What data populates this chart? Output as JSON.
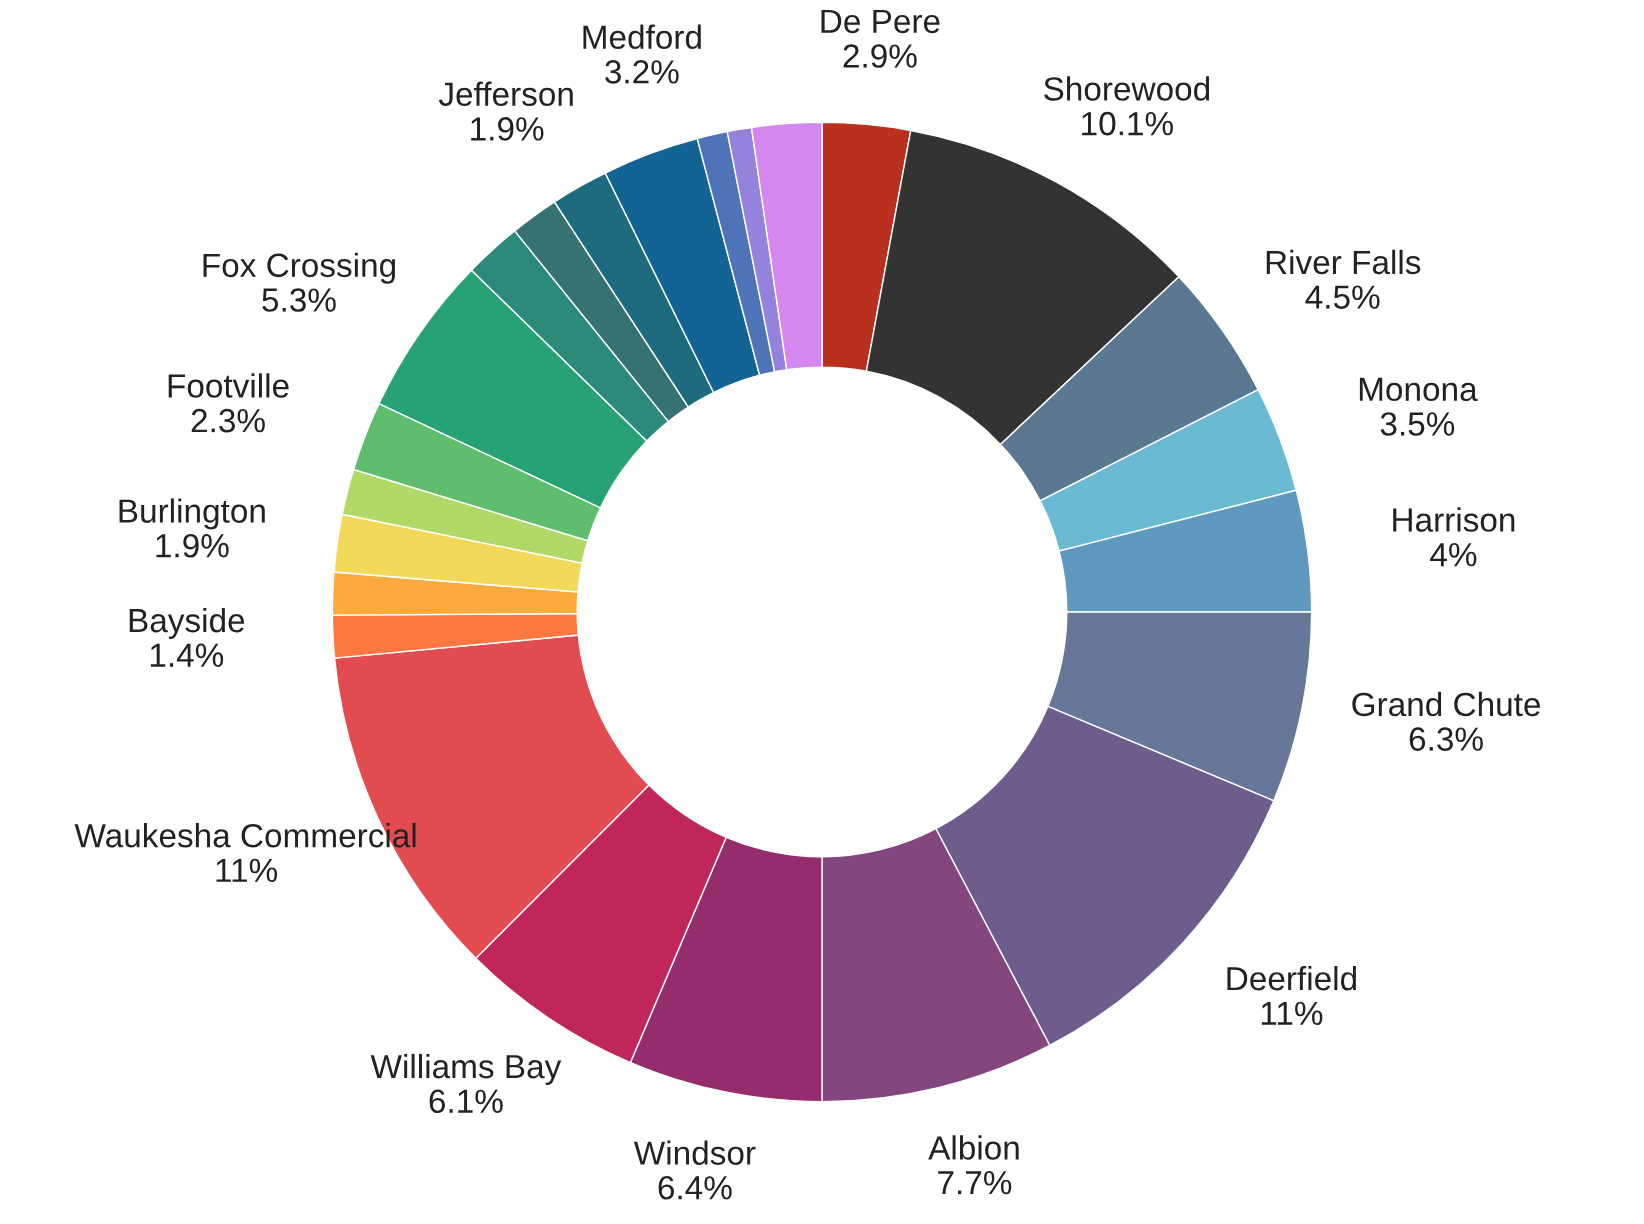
{
  "chart_data": {
    "type": "donut",
    "categories": [
      "De Pere",
      "Shorewood",
      "River Falls",
      "Monona",
      "Harrison",
      "Grand Chute",
      "Deerfield",
      "Albion",
      "Windsor",
      "Williams Bay",
      "Waukesha Commercial",
      "Bayside",
      null,
      "Burlington",
      null,
      "Footville",
      "Fox Crossing",
      null,
      null,
      "Jefferson",
      "Medford",
      null,
      null,
      null
    ],
    "values": [
      2.9,
      10.1,
      4.5,
      3.5,
      4,
      6.3,
      11,
      7.7,
      6.4,
      6.1,
      11,
      1.4,
      1.4,
      1.9,
      1.5,
      2.3,
      5.3,
      1.9,
      1.6,
      1.9,
      3.2,
      1.0,
      0.8,
      2.3
    ],
    "value_labels": [
      "2.9%",
      "10.1%",
      "4.5%",
      "3.5%",
      "4%",
      "6.3%",
      "11%",
      "7.7%",
      "6.4%",
      "6.1%",
      "11%",
      "1.4%",
      null,
      "1.9%",
      null,
      "2.3%",
      "5.3%",
      null,
      null,
      "1.9%",
      "3.2%",
      null,
      null,
      null
    ],
    "colors": [
      "#b9301e",
      "#333333",
      "#5a7891",
      "#6bbad4",
      "#5f99c0",
      "#667799",
      "#6e5c8c",
      "#83467f",
      "#952d6d",
      "#c0265a",
      "#e24b50",
      "#fd7840",
      "#fdaa3c",
      "#f3d95a",
      "#b0d968",
      "#5fbd6e",
      "#27a274",
      "#2b8a7a",
      "#367272",
      "#1e6a7e",
      "#136494",
      "#4f73b8",
      "#9482dc",
      "#d487ef"
    ]
  }
}
